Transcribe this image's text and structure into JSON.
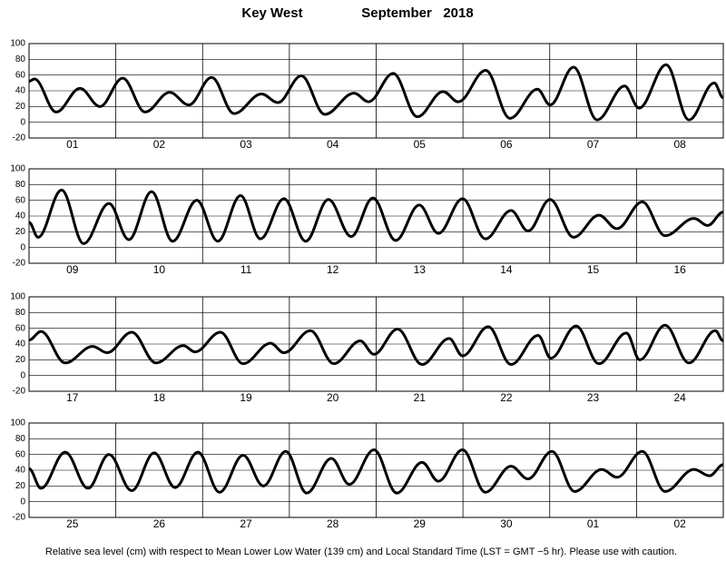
{
  "title": "Key West",
  "subtitle": "September   2018",
  "note": "Relative sea level (cm) with respect to Mean Lower Low Water (139 cm) and Local Standard Time (LST = GMT −5 hr). Please use with caution.",
  "chart_data": [
    {
      "type": "line",
      "color": "#000000",
      "grid": true,
      "categories": [
        "01",
        "02",
        "03",
        "04",
        "05",
        "06",
        "07",
        "08"
      ],
      "x": [
        0,
        1.5,
        7.5,
        14.1,
        19.6,
        25.9,
        32.1,
        38.9,
        44.2,
        50.5,
        56.7,
        64.3,
        68.8,
        75.3,
        81.8,
        89.9,
        93.9,
        100.7,
        107.4,
        114.5,
        118.7,
        126.3,
        133,
        140.6,
        144.1,
        150.6,
        157.1,
        164.7,
        168.7,
        176.2,
        182.5,
        189.5,
        192
      ],
      "values": [
        52,
        55,
        13,
        43,
        20,
        56,
        13,
        38,
        22,
        57,
        11,
        36,
        25,
        59,
        10,
        37,
        26,
        62,
        7,
        39,
        26,
        66,
        5,
        42,
        22,
        70,
        3,
        46,
        18,
        73,
        3,
        50,
        31
      ],
      "xlim": [
        0,
        192
      ],
      "ylim": [
        -20,
        100
      ],
      "yticks": [
        -20,
        0,
        20,
        40,
        60,
        80,
        100
      ]
    },
    {
      "type": "line",
      "color": "#000000",
      "grid": true,
      "categories": [
        "09",
        "10",
        "11",
        "12",
        "13",
        "14",
        "15",
        "16"
      ],
      "x": [
        0,
        2.5,
        9,
        15.1,
        22.1,
        27.6,
        33.9,
        39.7,
        46.4,
        52.2,
        58.5,
        64,
        70.5,
        76.5,
        82.8,
        89.1,
        95.1,
        101.4,
        107.9,
        113.2,
        119.9,
        126.2,
        133.3,
        138,
        144.1,
        150.6,
        157.6,
        162.6,
        169.6,
        175.9,
        183.9,
        187.7,
        192
      ],
      "values": [
        32,
        13,
        73,
        5,
        56,
        10,
        71,
        8,
        60,
        8,
        66,
        11,
        62,
        8,
        61,
        14,
        63,
        9,
        54,
        18,
        62,
        11,
        47,
        21,
        61,
        13,
        41,
        24,
        58,
        15,
        37,
        28,
        45
      ],
      "xlim": [
        0,
        192
      ],
      "ylim": [
        -20,
        100
      ],
      "yticks": [
        -20,
        0,
        20,
        40,
        60,
        80,
        100
      ]
    },
    {
      "type": "line",
      "color": "#000000",
      "grid": true,
      "categories": [
        "17",
        "18",
        "19",
        "20",
        "21",
        "22",
        "23",
        "24"
      ],
      "x": [
        0,
        3.3,
        10,
        17.6,
        21.6,
        28.4,
        35.1,
        42.7,
        45.9,
        52.9,
        59.2,
        66.8,
        70.5,
        77.8,
        84.3,
        91.6,
        95.4,
        101.9,
        108.7,
        116.2,
        119.9,
        127,
        133.3,
        140.8,
        144.3,
        151.3,
        157.6,
        165.2,
        168.9,
        175.9,
        182.5,
        189.8,
        192
      ],
      "values": [
        45,
        56,
        16,
        37,
        29,
        55,
        16,
        38,
        30,
        55,
        15,
        41,
        29,
        57,
        15,
        44,
        27,
        59,
        14,
        47,
        25,
        62,
        14,
        51,
        22,
        63,
        15,
        54,
        20,
        64,
        16,
        57,
        44
      ],
      "xlim": [
        0,
        192
      ],
      "ylim": [
        -20,
        100
      ],
      "yticks": [
        -20,
        0,
        20,
        40,
        60,
        80,
        100
      ]
    },
    {
      "type": "line",
      "color": "#000000",
      "grid": true,
      "categories": [
        "25",
        "26",
        "27",
        "28",
        "29",
        "30",
        "01",
        "02"
      ],
      "x": [
        0,
        3.3,
        10,
        16.3,
        22.1,
        28.4,
        34.6,
        40.4,
        46.7,
        52.7,
        59.2,
        64.8,
        71,
        76.8,
        83.6,
        88.6,
        95.4,
        101.7,
        108.7,
        113.2,
        119.9,
        126.2,
        133.3,
        138,
        144.6,
        150.9,
        158.4,
        162.6,
        169.6,
        175.9,
        183.9,
        188.2,
        192
      ],
      "values": [
        42,
        17,
        63,
        17,
        60,
        14,
        62,
        18,
        63,
        12,
        59,
        20,
        64,
        11,
        55,
        22,
        66,
        11,
        50,
        26,
        66,
        12,
        45,
        29,
        64,
        13,
        41,
        31,
        64,
        13,
        41,
        33,
        47
      ],
      "xlim": [
        0,
        192
      ],
      "ylim": [
        -20,
        100
      ],
      "yticks": [
        -20,
        0,
        20,
        40,
        60,
        80,
        100
      ]
    }
  ]
}
